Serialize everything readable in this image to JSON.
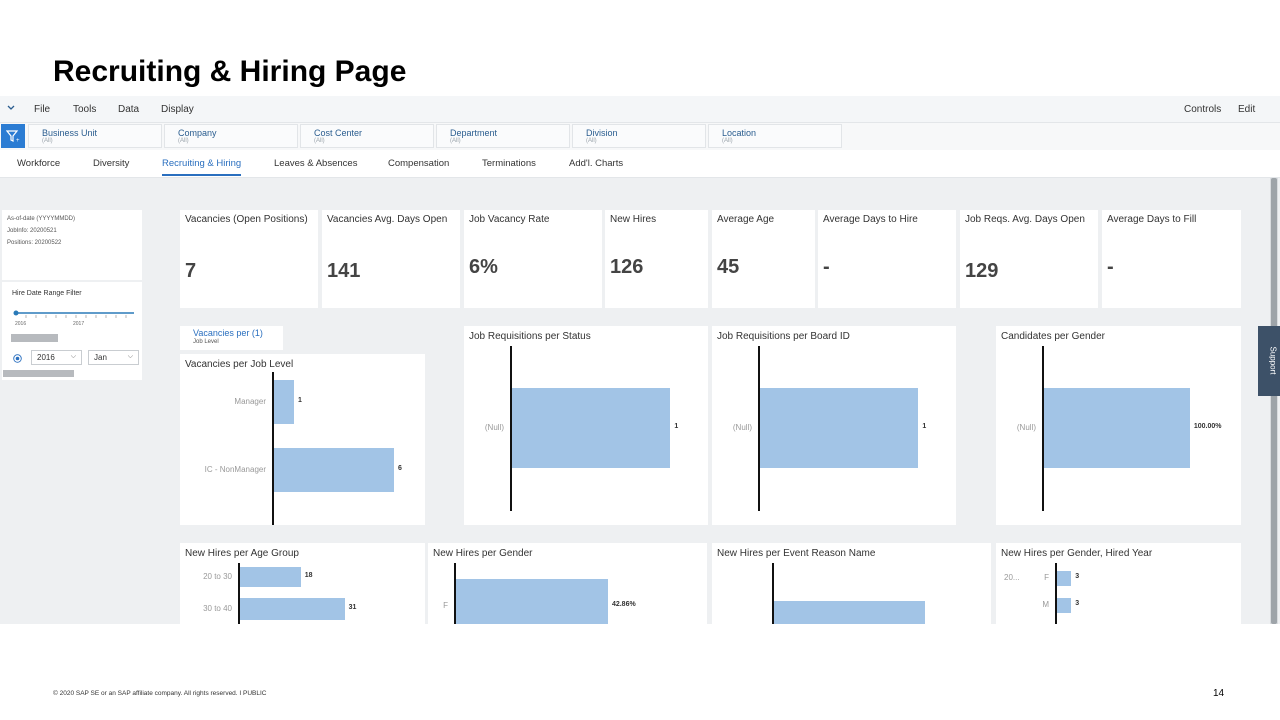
{
  "slide": {
    "title": "Recruiting & Hiring Page",
    "footer": "© 2020 SAP SE or an SAP affiliate company. All rights reserved.  I  PUBLIC",
    "page_number": "14"
  },
  "menu": {
    "items": [
      "File",
      "Tools",
      "Data",
      "Display"
    ],
    "right": [
      "Controls",
      "Edit"
    ]
  },
  "filters": [
    {
      "label": "Business Unit",
      "value": "(All)"
    },
    {
      "label": "Company",
      "value": "(All)"
    },
    {
      "label": "Cost Center",
      "value": "(All)"
    },
    {
      "label": "Department",
      "value": "(All)"
    },
    {
      "label": "Division",
      "value": "(All)"
    },
    {
      "label": "Location",
      "value": "(All)"
    }
  ],
  "tabs": [
    "Workforce",
    "Diversity",
    "Recruiting & Hiring",
    "Leaves & Absences",
    "Compensation",
    "Terminations",
    "Add'l. Charts"
  ],
  "active_tab": "Recruiting & Hiring",
  "info_panel": {
    "lines": [
      "As-of-date (YYYYMMDD)",
      "JobInfo: 20200521",
      "Positions: 20200522"
    ]
  },
  "hire_filter": {
    "title": "Hire Date Range Filter",
    "ticks": [
      "2016",
      "2017"
    ],
    "year": "2016",
    "month": "Jan"
  },
  "support_label": "Support",
  "kpis": [
    {
      "title": "Vacancies (Open Positions)",
      "value": "7"
    },
    {
      "title": "Vacancies Avg. Days Open",
      "value": "141"
    },
    {
      "title": "Job Vacancy Rate",
      "value": "6%"
    },
    {
      "title": "New Hires",
      "value": "126"
    },
    {
      "title": "Average Age",
      "value": "45"
    },
    {
      "title": "Average Days to Hire",
      "value": "-"
    },
    {
      "title": "Job Reqs. Avg. Days Open",
      "value": "129"
    },
    {
      "title": "Average Days to Fill",
      "value": "-"
    }
  ],
  "vacancies_tab": {
    "label": "Vacancies per (1)",
    "sub": "Job Level"
  },
  "chart_data": [
    {
      "type": "bar",
      "title": "Vacancies per Job Level",
      "categories": [
        "Manager",
        "IC - NonManager"
      ],
      "values": [
        1,
        6
      ],
      "labels": [
        "1",
        "6"
      ],
      "max": 7
    },
    {
      "type": "bar",
      "title": "Job Requisitions per Status",
      "categories": [
        "(Null)"
      ],
      "values": [
        1
      ],
      "labels": [
        "1"
      ],
      "max": 1.2
    },
    {
      "type": "bar",
      "title": "Job Requisitions per Board ID",
      "categories": [
        "(Null)"
      ],
      "values": [
        1
      ],
      "labels": [
        "1"
      ],
      "max": 1.2
    },
    {
      "type": "bar",
      "title": "Candidates per Gender",
      "categories": [
        "(Null)"
      ],
      "values": [
        100
      ],
      "labels": [
        "100.00%"
      ],
      "max": 120
    },
    {
      "type": "bar",
      "title": "New Hires per Age Group",
      "categories": [
        "20 to 30",
        "30 to 40"
      ],
      "values": [
        18,
        31
      ],
      "labels": [
        "18",
        "31"
      ],
      "max": 40
    },
    {
      "type": "bar",
      "title": "New Hires per Gender",
      "categories": [
        "F"
      ],
      "values": [
        42.86
      ],
      "labels": [
        "42.86%"
      ],
      "max": 55
    },
    {
      "type": "bar",
      "title": "New Hires per Event Reason Name",
      "categories": [
        ""
      ],
      "values": [
        1
      ],
      "labels": [
        ""
      ],
      "max": 1.1
    },
    {
      "type": "bar",
      "title": "New Hires per Gender, Hired Year",
      "categories": [
        "F",
        "M"
      ],
      "group_label": "20...",
      "values": [
        3,
        3
      ],
      "labels": [
        "3",
        "3"
      ],
      "max": 50
    }
  ]
}
